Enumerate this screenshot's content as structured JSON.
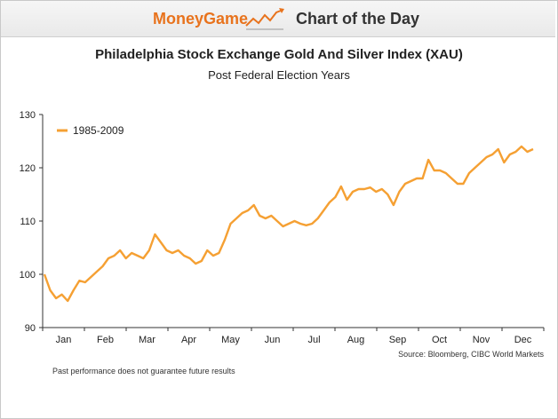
{
  "header": {
    "brand": "MoneyGame",
    "section": "Chart of the Day"
  },
  "colors": {
    "line": "#f5a033",
    "brand": "#e8731d"
  },
  "chart_data": {
    "type": "line",
    "title": "Philadelphia Stock Exchange Gold And Silver Index (XAU)",
    "subtitle": "Post Federal Election Years",
    "xlabel": "",
    "ylabel": "",
    "ylim": [
      90,
      130
    ],
    "yticks": [
      90,
      100,
      110,
      120,
      130
    ],
    "xticks": [
      "Jan",
      "Feb",
      "Mar",
      "Apr",
      "May",
      "Jun",
      "Jul",
      "Aug",
      "Sep",
      "Oct",
      "Nov",
      "Dec"
    ],
    "grid": false,
    "legend_position": "top-left",
    "series": [
      {
        "name": "1985-2009",
        "color": "#f5a033",
        "x": [
          0,
          3,
          6,
          9,
          12,
          15,
          18,
          21,
          24,
          27,
          30,
          33,
          36,
          39,
          42,
          45,
          48,
          51,
          54,
          57,
          60,
          63,
          66,
          69,
          72,
          75,
          78,
          81,
          84,
          87,
          90,
          93,
          96,
          99,
          102,
          105,
          108,
          111,
          114,
          117,
          120,
          123,
          126,
          129,
          132,
          135,
          138,
          141,
          144,
          147,
          150,
          153,
          156,
          159,
          162,
          165,
          168,
          171,
          174,
          177,
          180,
          183,
          186,
          189,
          192,
          195,
          198,
          201,
          204,
          207,
          210,
          213,
          216,
          219,
          222,
          225,
          228,
          231,
          234,
          237,
          240,
          243,
          246,
          249,
          252
        ],
        "values": [
          100,
          97,
          95.5,
          96.2,
          95,
          97,
          98.8,
          98.5,
          99.5,
          100.5,
          101.5,
          103,
          103.5,
          104.5,
          103,
          104,
          103.5,
          103,
          104.5,
          107.5,
          106,
          104.5,
          104,
          104.5,
          103.5,
          103,
          102,
          102.5,
          104.5,
          103.5,
          104,
          106.5,
          109.5,
          110.5,
          111.5,
          112,
          113,
          111,
          110.5,
          111,
          110,
          109,
          109.5,
          110,
          109.5,
          109.2,
          109.5,
          110.5,
          112,
          113.5,
          114.5,
          116.5,
          114,
          115.5,
          116,
          116,
          116.3,
          115.5,
          116,
          115,
          113,
          115.5,
          117,
          117.5,
          118,
          118,
          121.5,
          119.5,
          119.5,
          119,
          118,
          117,
          117,
          119,
          120,
          121,
          122,
          122.5,
          123.5,
          121,
          122.5,
          123,
          124,
          123,
          123.5
        ]
      }
    ]
  },
  "source": "Source: Bloomberg, CIBC World Markets",
  "disclaimer": "Past performance does not guarantee future results"
}
